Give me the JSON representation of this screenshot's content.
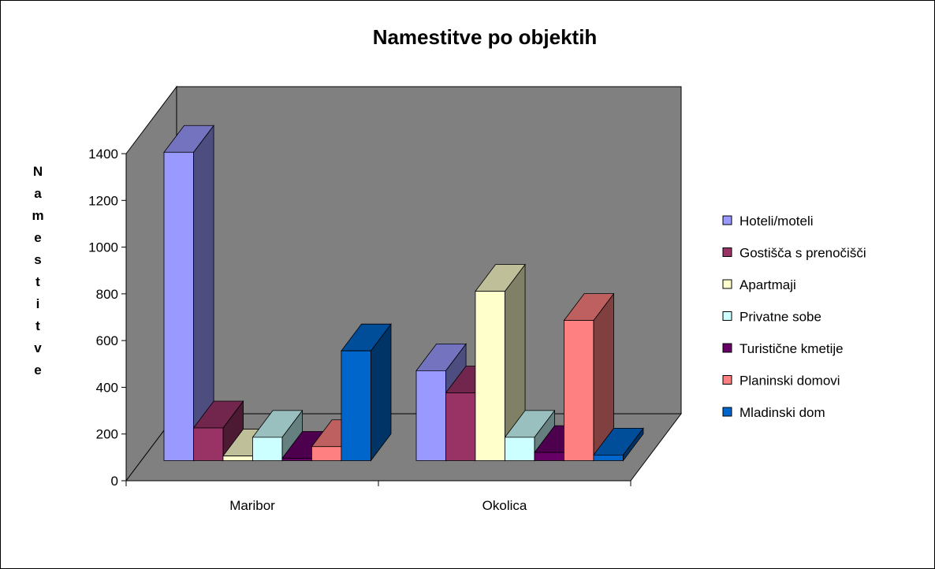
{
  "chart_data": {
    "type": "bar3d",
    "title": "Namestitve po objektih",
    "y_label": "Namestitve",
    "categories": [
      "Maribor",
      "Okolica"
    ],
    "series": [
      {
        "name": "Hoteli/moteli",
        "color": "#9999ff",
        "values": [
          1320,
          385
        ]
      },
      {
        "name": "Gostišča s prenočišči",
        "color": "#993366",
        "values": [
          140,
          290
        ]
      },
      {
        "name": "Apartmaji",
        "color": "#ffffcc",
        "values": [
          20,
          725
        ]
      },
      {
        "name": "Privatne sobe",
        "color": "#ccffff",
        "values": [
          100,
          100
        ]
      },
      {
        "name": "Turistične kmetije",
        "color": "#660066",
        "values": [
          10,
          35
        ]
      },
      {
        "name": "Planinski domovi",
        "color": "#ff8080",
        "values": [
          60,
          600
        ]
      },
      {
        "name": "Mladinski dom",
        "color": "#0066cc",
        "values": [
          470,
          24
        ]
      }
    ],
    "ylim": [
      0,
      1400
    ],
    "yticks": [
      0,
      200,
      400,
      600,
      800,
      1000,
      1200,
      1400
    ],
    "wall_color": "#808080",
    "legend": "right"
  }
}
